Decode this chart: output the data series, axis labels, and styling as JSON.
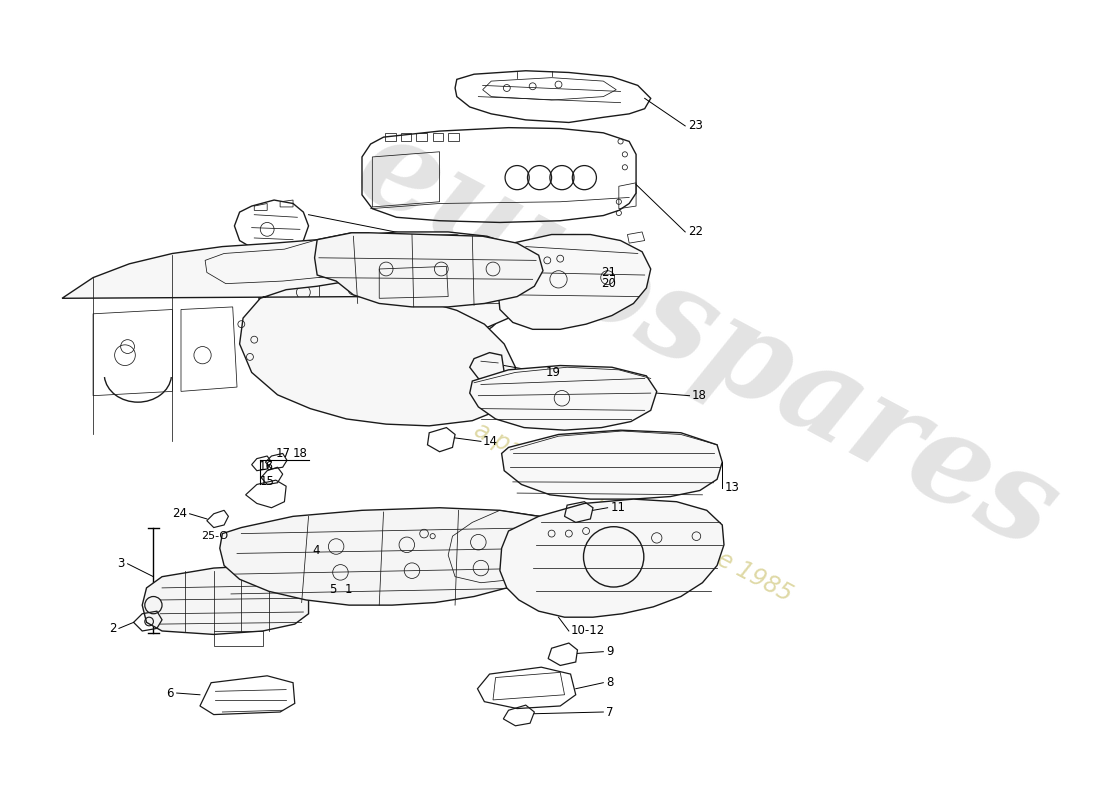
{
  "bg_color": "#ffffff",
  "line_color": "#1a1a1a",
  "wm1": "eurospares",
  "wm2": "a passion for parts since 1985",
  "wm1_color": "#c8c8c8",
  "wm2_color": "#d4cc88",
  "wm1_size": 90,
  "wm2_size": 17,
  "wm_rot": -28,
  "lw_main": 1.0,
  "lw_detail": 0.55,
  "lw_leader": 0.7
}
